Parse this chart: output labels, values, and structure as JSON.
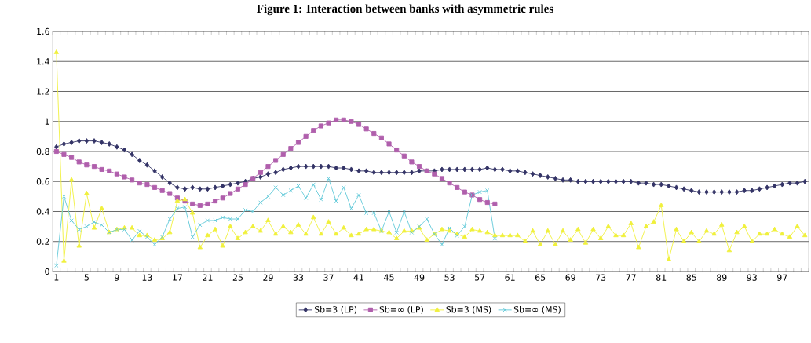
{
  "chart_data": {
    "type": "line",
    "title": "Figure 1: Interaction between banks with asymmetric rules",
    "categories": [
      "1",
      null,
      null,
      null,
      "5",
      null,
      null,
      null,
      "9",
      null,
      null,
      null,
      "13",
      null,
      null,
      null,
      "17",
      null,
      null,
      null,
      "21",
      null,
      null,
      null,
      "25",
      null,
      null,
      null,
      "29",
      null,
      null,
      null,
      "33",
      null,
      null,
      null,
      "37",
      null,
      null,
      null,
      "41",
      null,
      null,
      null,
      "45",
      null,
      null,
      null,
      "49",
      null,
      null,
      null,
      "53",
      null,
      null,
      null,
      "57",
      null,
      null,
      null,
      "61",
      null,
      null,
      null,
      "65",
      null,
      null,
      null,
      "69",
      null,
      null,
      null,
      "73",
      null,
      null,
      null,
      "77",
      null,
      null,
      null,
      "81",
      null,
      null,
      null,
      "85",
      null,
      null,
      null,
      "89",
      null,
      null,
      null,
      "93",
      null,
      null,
      null,
      "97",
      null,
      null,
      null
    ],
    "series": [
      {
        "name": "Sb=3 (LP)",
        "color": "#333366",
        "marker": "diamond",
        "values": [
          0.83,
          0.85,
          0.86,
          0.87,
          0.87,
          0.87,
          0.86,
          0.85,
          0.83,
          0.81,
          0.78,
          0.74,
          0.71,
          0.67,
          0.63,
          0.59,
          0.56,
          0.55,
          0.56,
          0.55,
          0.55,
          0.56,
          0.57,
          0.58,
          0.59,
          0.6,
          0.62,
          0.63,
          0.65,
          0.66,
          0.68,
          0.69,
          0.7,
          0.7,
          0.7,
          0.7,
          0.7,
          0.69,
          0.69,
          0.68,
          0.67,
          0.67,
          0.66,
          0.66,
          0.66,
          0.66,
          0.66,
          0.66,
          0.67,
          0.67,
          0.67,
          0.68,
          0.68,
          0.68,
          0.68,
          0.68,
          0.68,
          0.69,
          0.68,
          0.68,
          0.67,
          0.67,
          0.66,
          0.65,
          0.64,
          0.63,
          0.62,
          0.61,
          0.61,
          0.6,
          0.6,
          0.6,
          0.6,
          0.6,
          0.6,
          0.6,
          0.6,
          0.59,
          0.59,
          0.58,
          0.58,
          0.57,
          0.56,
          0.55,
          0.54,
          0.53,
          0.53,
          0.53,
          0.53,
          0.53,
          0.53,
          0.54,
          0.54,
          0.55,
          0.56,
          0.57,
          0.58,
          0.59,
          0.59,
          0.6
        ]
      },
      {
        "name": "Sb=∞ (LP)",
        "color": "#b05fac",
        "marker": "square",
        "values": [
          0.8,
          0.78,
          0.76,
          0.73,
          0.71,
          0.7,
          0.68,
          0.67,
          0.65,
          0.63,
          0.61,
          0.59,
          0.58,
          0.56,
          0.54,
          0.52,
          0.49,
          0.47,
          0.45,
          0.44,
          0.45,
          0.47,
          0.49,
          0.52,
          0.55,
          0.58,
          0.62,
          0.66,
          0.7,
          0.74,
          0.78,
          0.82,
          0.86,
          0.9,
          0.94,
          0.97,
          0.99,
          1.01,
          1.01,
          1.0,
          0.98,
          0.95,
          0.92,
          0.89,
          0.85,
          0.81,
          0.77,
          0.73,
          0.7,
          0.67,
          0.65,
          0.62,
          0.59,
          0.56,
          0.53,
          0.51,
          0.48,
          0.46,
          0.45,
          null,
          null,
          null,
          null,
          null,
          null,
          null,
          null,
          null,
          null,
          null,
          null,
          null,
          null,
          null,
          null,
          null,
          null,
          null,
          null,
          null,
          null,
          null,
          null,
          null,
          null,
          null,
          null,
          null,
          null,
          null,
          null,
          null,
          null,
          null,
          null,
          null,
          null,
          null,
          null,
          null
        ]
      },
      {
        "name": "Sb=3 (MS)",
        "color": "#f0f03c",
        "marker": "triangle",
        "values": [
          1.46,
          0.07,
          0.61,
          0.17,
          0.52,
          0.29,
          0.42,
          0.26,
          0.28,
          0.29,
          0.29,
          0.24,
          0.24,
          0.21,
          0.22,
          0.26,
          0.47,
          0.48,
          0.39,
          0.16,
          0.24,
          0.28,
          0.17,
          0.3,
          0.22,
          0.26,
          0.3,
          0.27,
          0.34,
          0.25,
          0.3,
          0.26,
          0.31,
          0.25,
          0.36,
          0.25,
          0.33,
          0.25,
          0.29,
          0.24,
          0.25,
          0.28,
          0.28,
          0.27,
          0.26,
          0.22,
          0.27,
          0.27,
          0.29,
          0.21,
          0.25,
          0.28,
          0.27,
          0.25,
          0.23,
          0.28,
          0.27,
          0.26,
          0.24,
          0.24,
          0.24,
          0.24,
          0.2,
          0.27,
          0.18,
          0.27,
          0.18,
          0.27,
          0.21,
          0.28,
          0.19,
          0.28,
          0.22,
          0.3,
          0.24,
          0.24,
          0.32,
          0.16,
          0.3,
          0.33,
          0.44,
          0.08,
          0.28,
          0.2,
          0.26,
          0.2,
          0.27,
          0.25,
          0.31,
          0.14,
          0.26,
          0.3,
          0.2,
          0.25,
          0.25,
          0.28,
          0.25,
          0.23,
          0.3,
          0.24
        ]
      },
      {
        "name": "Sb=∞ (MS)",
        "color": "#5fc8d8",
        "marker": "cross",
        "values": [
          0.04,
          0.5,
          0.34,
          0.28,
          0.3,
          0.33,
          0.31,
          0.26,
          0.28,
          0.28,
          0.21,
          0.27,
          0.23,
          0.18,
          0.23,
          0.35,
          0.42,
          0.43,
          0.23,
          0.31,
          0.34,
          0.34,
          0.36,
          0.35,
          0.35,
          0.41,
          0.4,
          0.46,
          0.5,
          0.56,
          0.51,
          0.54,
          0.57,
          0.49,
          0.58,
          0.48,
          0.62,
          0.47,
          0.56,
          0.42,
          0.51,
          0.39,
          0.39,
          0.27,
          0.4,
          0.26,
          0.4,
          0.26,
          0.3,
          0.35,
          0.25,
          0.18,
          0.29,
          0.24,
          0.3,
          0.51,
          0.53,
          0.54,
          0.22,
          null,
          null,
          null,
          null,
          null,
          null,
          null,
          null,
          null,
          null,
          null,
          null,
          null,
          null,
          null,
          null,
          null,
          null,
          null,
          null,
          null,
          null,
          null,
          null,
          null,
          null,
          null,
          null,
          null,
          null,
          null,
          null,
          null,
          null,
          null,
          null,
          null,
          null,
          null,
          null,
          null
        ]
      }
    ],
    "ylim": [
      0,
      1.6
    ],
    "yticks": [
      0,
      0.2,
      0.4,
      0.6,
      0.8,
      1,
      1.2,
      1.4,
      1.6
    ],
    "grid": "y",
    "legend": "bottom",
    "line_style": "solid"
  }
}
